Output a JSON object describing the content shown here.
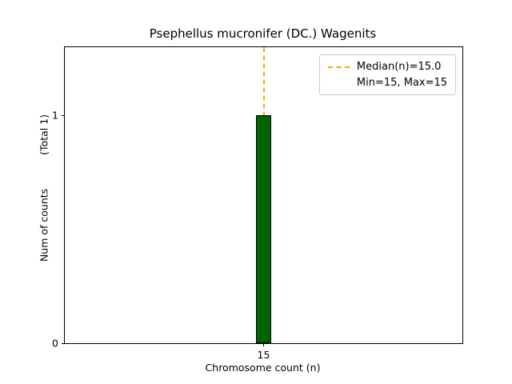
{
  "chart_data": {
    "type": "bar",
    "title": "Psephellus mucronifer (DC.) Wagenits",
    "xlabel": "Chromosome count (n)",
    "ylabel": "Num of counts",
    "ylabel_annotation": "(Total 1)",
    "categories": [
      15
    ],
    "values": [
      1
    ],
    "bar_width": 0.2,
    "xlim": [
      12.5,
      17.5
    ],
    "ylim": [
      0,
      1.3
    ],
    "xticks": [
      15
    ],
    "yticks": [
      0,
      1
    ],
    "median": 15.0,
    "min": 15,
    "max": 15,
    "grid": false,
    "legend": {
      "position": "upper right",
      "entries": [
        "Median(n)=15.0",
        "Min=15, Max=15"
      ]
    },
    "colors": {
      "bar_fill": "#006400",
      "bar_edge": "#000000",
      "median_line": "#FFA500",
      "axis": "#000000",
      "background": "#FFFFFF"
    }
  }
}
